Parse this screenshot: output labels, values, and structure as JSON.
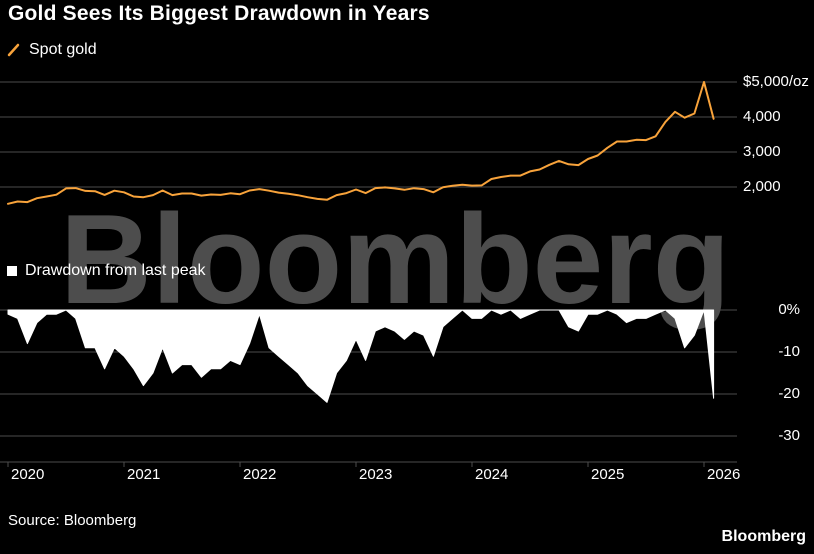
{
  "title": "Gold Sees Its Biggest Drawdown in Years",
  "source": "Source: Bloomberg",
  "brand_logo": "Bloomberg",
  "watermark": "Bloomberg",
  "colors": {
    "background": "#000000",
    "text": "#ffffff",
    "spot_gold_line": "#f8a33b",
    "drawdown_fill": "#ffffff",
    "grid": "#4d4d4d",
    "watermark": "#4d4d4d"
  },
  "chart_data": {
    "type": "multi-panel",
    "x_unit": "decimal_year",
    "x": [
      2020.0,
      2020.083,
      2020.167,
      2020.25,
      2020.333,
      2020.417,
      2020.5,
      2020.583,
      2020.667,
      2020.75,
      2020.833,
      2020.917,
      2021.0,
      2021.083,
      2021.167,
      2021.25,
      2021.333,
      2021.417,
      2021.5,
      2021.583,
      2021.667,
      2021.75,
      2021.833,
      2021.917,
      2022.0,
      2022.083,
      2022.167,
      2022.25,
      2022.333,
      2022.417,
      2022.5,
      2022.583,
      2022.667,
      2022.75,
      2022.833,
      2022.917,
      2023.0,
      2023.083,
      2023.167,
      2023.25,
      2023.333,
      2023.417,
      2023.5,
      2023.583,
      2023.667,
      2023.75,
      2023.833,
      2023.917,
      2024.0,
      2024.083,
      2024.167,
      2024.25,
      2024.333,
      2024.417,
      2024.5,
      2024.583,
      2024.667,
      2024.75,
      2024.833,
      2024.917,
      2025.0,
      2025.083,
      2025.167,
      2025.25,
      2025.333,
      2025.417,
      2025.5,
      2025.583,
      2025.667,
      2025.75,
      2025.833,
      2025.917,
      2026.0,
      2026.083
    ],
    "xticks": [
      2020,
      2021,
      2022,
      2023,
      2024,
      2025,
      2026
    ],
    "xtick_labels": [
      "2020",
      "2021",
      "2022",
      "2023",
      "2024",
      "2025",
      "2026"
    ],
    "panels": [
      {
        "type": "line",
        "name": "spot-gold",
        "legend": "Spot gold",
        "unit": "USD/oz",
        "color": "#f8a33b",
        "ylim": [
          1300,
          5500
        ],
        "yticks": [
          5000,
          4000,
          3000,
          2000
        ],
        "ytick_labels": [
          "$5,000/oz",
          "4,000",
          "3,000",
          "2,000"
        ],
        "values": [
          1520,
          1585,
          1570,
          1680,
          1730,
          1780,
          1960,
          1970,
          1890,
          1880,
          1775,
          1895,
          1850,
          1730,
          1710,
          1770,
          1900,
          1770,
          1815,
          1815,
          1755,
          1785,
          1775,
          1820,
          1795,
          1900,
          1940,
          1895,
          1840,
          1805,
          1765,
          1710,
          1660,
          1635,
          1770,
          1825,
          1930,
          1825,
          1970,
          1990,
          1960,
          1920,
          1965,
          1940,
          1850,
          1995,
          2035,
          2065,
          2040,
          2045,
          2230,
          2285,
          2325,
          2325,
          2445,
          2500,
          2635,
          2745,
          2650,
          2625,
          2800,
          2900,
          3120,
          3300,
          3300,
          3350,
          3340,
          3450,
          3860,
          4150,
          3980,
          4100,
          5000,
          3950
        ]
      },
      {
        "type": "area",
        "name": "drawdown",
        "legend": "Drawdown from last peak",
        "unit": "%",
        "color": "#ffffff",
        "ylim": [
          -36,
          0
        ],
        "yticks": [
          0,
          -10,
          -20,
          -30
        ],
        "ytick_labels": [
          "0%",
          "-10",
          "-20",
          "-30"
        ],
        "values": [
          -1,
          -2,
          -8,
          -3,
          -1,
          -1,
          0,
          -2,
          -9,
          -9,
          -14,
          -9,
          -11,
          -14,
          -18,
          -15,
          -9,
          -15,
          -13,
          -13,
          -16,
          -14,
          -14,
          -12,
          -13,
          -8,
          -1,
          -9,
          -11,
          -13,
          -15,
          -18,
          -20,
          -22,
          -15,
          -12,
          -7,
          -12,
          -5,
          -4,
          -5,
          -7,
          -5,
          -6,
          -11,
          -4,
          -2,
          0,
          -2,
          -2,
          0,
          -1,
          0,
          -2,
          -1,
          0,
          0,
          0,
          -4,
          -5,
          -1,
          -1,
          0,
          -1,
          -3,
          -2,
          -2,
          -1,
          0,
          -2,
          -9,
          -6,
          0,
          -21
        ]
      }
    ]
  }
}
